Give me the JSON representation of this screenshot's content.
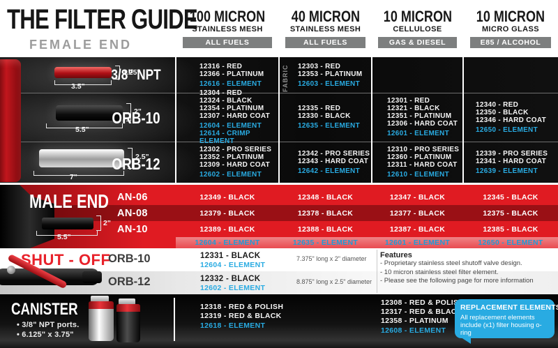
{
  "title": "THE FILTER GUIDE",
  "female_end": {
    "label": "FEMALE END",
    "rows": [
      {
        "label": "3/8\" NPT",
        "dims": {
          "h": "1.25\"",
          "l": "3.5\""
        },
        "cells": [
          {
            "parts": [
              "12316 - RED",
              "12366 - PLATINUM"
            ],
            "elements": [
              "12616 - ELEMENT"
            ]
          },
          {
            "note": "FABRIC",
            "parts": [
              "12303 - RED",
              "12353 - PLATINUM"
            ],
            "elements": [
              "12603 - ELEMENT"
            ]
          },
          {
            "parts": [],
            "elements": []
          },
          {
            "parts": [],
            "elements": []
          }
        ]
      },
      {
        "label": "ORB-10",
        "dims": {
          "h": "2\"",
          "l": "5.5\""
        },
        "cells": [
          {
            "parts": [
              "12304 - RED",
              "12324 - BLACK",
              "12354 - PLATINUM",
              "12307 - HARD COAT"
            ],
            "elements": [
              "12604 - ELEMENT",
              "12614 - CRIMP ELEMENT"
            ]
          },
          {
            "parts": [
              "12335 - RED",
              "12330 - BLACK"
            ],
            "elements": [
              "12635 - ELEMENT"
            ]
          },
          {
            "parts": [
              "12301 - RED",
              "12321 - BLACK",
              "12351 - PLATINUM",
              "12306 - HARD COAT"
            ],
            "elements": [
              "12601 - ELEMENT"
            ]
          },
          {
            "parts": [
              "12340 - RED",
              "12350 - BLACK",
              "12346 - HARD COAT"
            ],
            "elements": [
              "12650 - ELEMENT"
            ]
          }
        ]
      },
      {
        "label": "ORB-12",
        "dims": {
          "h": "2.5\"",
          "l": "7\""
        },
        "cells": [
          {
            "parts": [
              "12302 - PRO SERIES",
              "12352 - PLATINUM",
              "12309 - HARD COAT"
            ],
            "elements": [
              "12602 - ELEMENT"
            ]
          },
          {
            "parts": [
              "12342 - PRO SERIES",
              "12343 - HARD COAT"
            ],
            "elements": [
              "12642 - ELEMENT"
            ]
          },
          {
            "parts": [
              "12310 - PRO SERIES",
              "12360 - PLATINUM",
              "12311 - HARD COAT"
            ],
            "elements": [
              "12610 - ELEMENT"
            ]
          },
          {
            "parts": [
              "12339 - PRO SERIES",
              "12341 - HARD COAT"
            ],
            "elements": [
              "12639 - ELEMENT"
            ]
          }
        ]
      }
    ]
  },
  "columns": [
    {
      "micron": "100 MICRON",
      "media": "STAINLESS MESH",
      "badge": "ALL FUELS"
    },
    {
      "micron": "40 MICRON",
      "media": "STAINLESS MESH",
      "badge": "ALL FUELS"
    },
    {
      "micron": "10 MICRON",
      "media": "CELLULOSE",
      "badge": "GAS & DIESEL"
    },
    {
      "micron": "10 MICRON",
      "media": "MICRO GLASS",
      "badge": "E85 / ALCOHOL"
    }
  ],
  "male_end": {
    "label": "MALE END",
    "dims": {
      "h": "2\"",
      "l": "5.5\""
    },
    "rows": [
      {
        "label": "AN-06",
        "cells": [
          "12349 - BLACK",
          "12348 - BLACK",
          "12347 - BLACK",
          "12345 - BLACK"
        ]
      },
      {
        "label": "AN-08",
        "cells": [
          "12379 - BLACK",
          "12378 - BLACK",
          "12377 - BLACK",
          "12375 - BLACK"
        ]
      },
      {
        "label": "AN-10",
        "cells": [
          "12389 - BLACK",
          "12388 - BLACK",
          "12387 - BLACK",
          "12385 - BLACK"
        ]
      }
    ],
    "elements_row": [
      "12604 - ELEMENT",
      "12635 - ELEMENT",
      "12601 - ELEMENT",
      "12650 - ELEMENT"
    ]
  },
  "shut_off": {
    "label": "SHUT - OFF",
    "rows": [
      {
        "label": "ORB-10",
        "part": "12331 - BLACK",
        "element": "12604 - ELEMENT",
        "size": "7.375\" long x 2\" diameter"
      },
      {
        "label": "ORB-12",
        "part": "12332 - BLACK",
        "element": "12602 - ELEMENT",
        "size": "8.875\" long x 2.5\" diameter"
      }
    ],
    "features": {
      "heading": "Features",
      "items": [
        "- Proprietary stainless steel shutoff valve design.",
        "- 10 micron stainless steel filter element.",
        "- Please see the following page for more information"
      ]
    }
  },
  "canister": {
    "label": "CANISTER",
    "bullets": [
      "• 3/8\" NPT ports.",
      "• 6.125\" x 3.75\""
    ],
    "col1": {
      "parts": [
        "12318 - RED & POLISH",
        "12319 - RED & BLACK"
      ],
      "elements": [
        "12618 - ELEMENT"
      ]
    },
    "col3": {
      "parts": [
        "12308 - RED & POLISH",
        "12317 - RED & BLACK",
        "12358 - PLATINUM"
      ],
      "elements": [
        "12608 - ELEMENT"
      ]
    },
    "callout": {
      "title": "REPLACEMENT ELEMENTS",
      "body": "All replacement elements include (x1) filter housing o-ring"
    }
  },
  "colors": {
    "accent_blue": "#29abe2",
    "brand_red": "#e01b22",
    "dark_red_band": "#8e0d12",
    "badge_gray": "#7d7f7f"
  }
}
